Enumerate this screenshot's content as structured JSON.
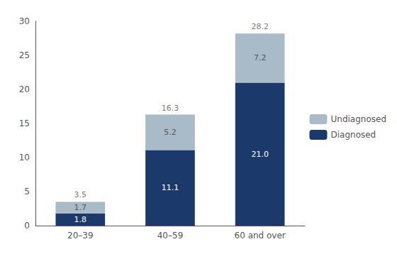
{
  "chart_data": {
    "type": "bar",
    "stacked": true,
    "data_labels": true,
    "grid": false,
    "legend": "right",
    "categories": [
      "20–39",
      "40–59",
      "60 and over"
    ],
    "series": [
      {
        "name": "Diagnosed",
        "color": "#1B3A6B",
        "values": [
          1.8,
          11.1,
          21.0
        ],
        "value_labels": [
          "1.8",
          "11.1",
          "21.0"
        ]
      },
      {
        "name": "Undiagnosed",
        "color": "#A9BAC8",
        "values": [
          1.7,
          5.2,
          7.2
        ]
      }
    ],
    "totals": [
      3.5,
      16.3,
      28.2
    ],
    "ylim": [
      0,
      30
    ],
    "yticks": [
      0,
      5,
      10,
      15,
      20,
      25,
      30
    ]
  }
}
